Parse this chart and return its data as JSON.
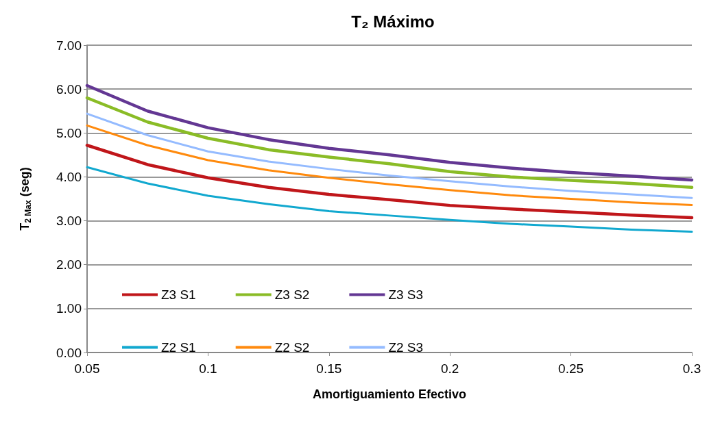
{
  "chart_data": {
    "type": "line",
    "title": "T₂ Máximo",
    "xlabel": "Amortiguamiento Efectivo",
    "ylabel": "T$_{2 Max}$ (seg)",
    "x": [
      0.05,
      0.075,
      0.1,
      0.125,
      0.15,
      0.175,
      0.2,
      0.225,
      0.25,
      0.275,
      0.3
    ],
    "series": [
      {
        "name": "Z3 S1",
        "color": "#c0161a",
        "values": [
          4.72,
          4.28,
          3.98,
          3.76,
          3.6,
          3.48,
          3.35,
          3.27,
          3.2,
          3.13,
          3.07
        ]
      },
      {
        "name": "Z3 S2",
        "color": "#8abc26",
        "values": [
          5.8,
          5.25,
          4.88,
          4.62,
          4.45,
          4.3,
          4.12,
          4.0,
          3.92,
          3.85,
          3.76
        ]
      },
      {
        "name": "Z3 S3",
        "color": "#633793",
        "values": [
          6.08,
          5.5,
          5.12,
          4.85,
          4.65,
          4.5,
          4.33,
          4.2,
          4.1,
          4.02,
          3.93
        ]
      },
      {
        "name": "Z2 S1",
        "color": "#11a8cf",
        "values": [
          4.22,
          3.85,
          3.57,
          3.38,
          3.22,
          3.12,
          3.02,
          2.93,
          2.87,
          2.8,
          2.75
        ]
      },
      {
        "name": "Z2 S2",
        "color": "#ff8a0d",
        "values": [
          5.17,
          4.72,
          4.38,
          4.15,
          3.98,
          3.83,
          3.7,
          3.58,
          3.5,
          3.42,
          3.36
        ]
      },
      {
        "name": "Z2 S3",
        "color": "#94bbff",
        "values": [
          5.44,
          4.95,
          4.58,
          4.35,
          4.18,
          4.03,
          3.9,
          3.78,
          3.68,
          3.6,
          3.52
        ]
      }
    ],
    "xlim": [
      0.05,
      0.3
    ],
    "xticks": [
      0.05,
      0.1,
      0.15,
      0.2,
      0.25,
      0.3
    ],
    "ylim": [
      0,
      7
    ],
    "yticks": [
      {
        "value": 0,
        "label": "0.00"
      },
      {
        "value": 1,
        "label": "1.00"
      },
      {
        "value": 2,
        "label": "2.00"
      },
      {
        "value": 3,
        "label": "3.00"
      },
      {
        "value": 4,
        "label": "4.00"
      },
      {
        "value": 5,
        "label": "5.00"
      },
      {
        "value": 6,
        "label": "6.00"
      },
      {
        "value": 7,
        "label": "7.00"
      }
    ],
    "grid": "y",
    "legend": "bottom left",
    "marker": "none",
    "line_style": "solid"
  }
}
